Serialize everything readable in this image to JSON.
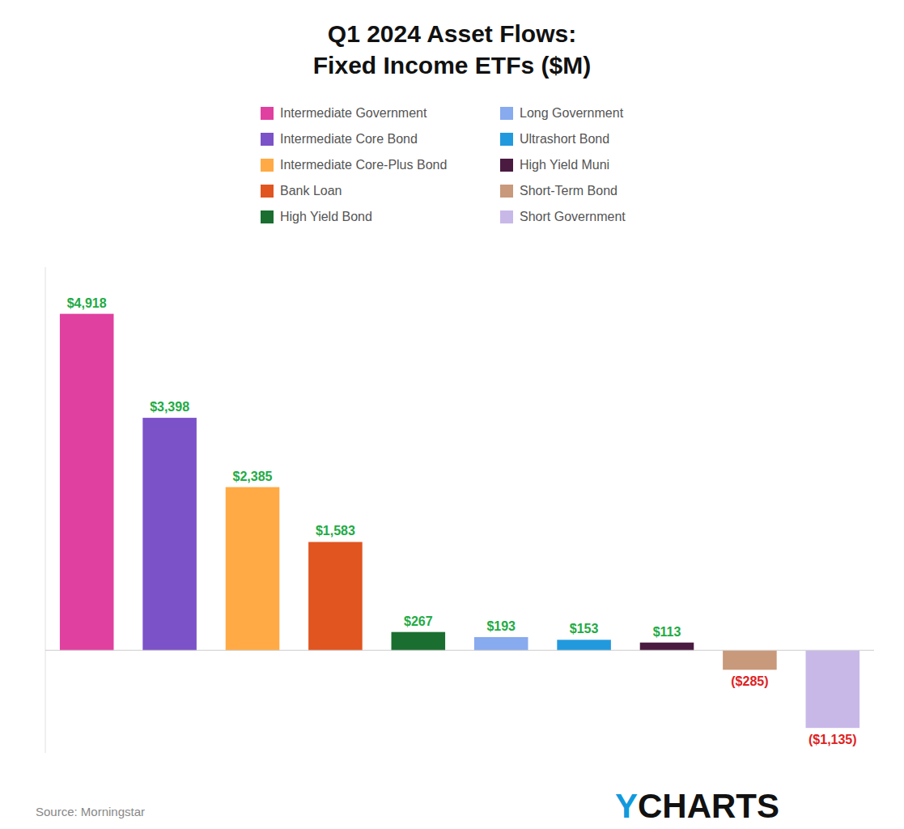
{
  "chart_data": {
    "type": "bar",
    "title": "Q1 2024 Asset Flows:\nFixed Income ETFs ($M)",
    "categories": [
      "Intermediate Government",
      "Intermediate Core Bond",
      "Intermediate Core-Plus Bond",
      "Bank Loan",
      "High Yield Bond",
      "Long Government",
      "Ultrashort Bond",
      "High Yield Muni",
      "Short-Term Bond",
      "Short Government"
    ],
    "values": [
      4918,
      3398,
      2385,
      1583,
      267,
      193,
      153,
      113,
      -285,
      -1135
    ],
    "value_labels": [
      "$4,918",
      "$3,398",
      "$2,385",
      "$1,583",
      "$267",
      "$193",
      "$153",
      "$113",
      "($285)",
      "($1,135)"
    ],
    "colors": [
      "#e040a0",
      "#7b52c8",
      "#ffaa44",
      "#e05520",
      "#1a6e30",
      "#88aaee",
      "#2299dd",
      "#4a1a40",
      "#c8997a",
      "#c8b8e8"
    ],
    "ylim": [
      -1500,
      5600
    ],
    "data_labels": true,
    "tick_labels": false,
    "grid": false,
    "legend": "top",
    "annotations": [
      "Source: Morningstar",
      "Y",
      "CHARTS"
    ]
  }
}
